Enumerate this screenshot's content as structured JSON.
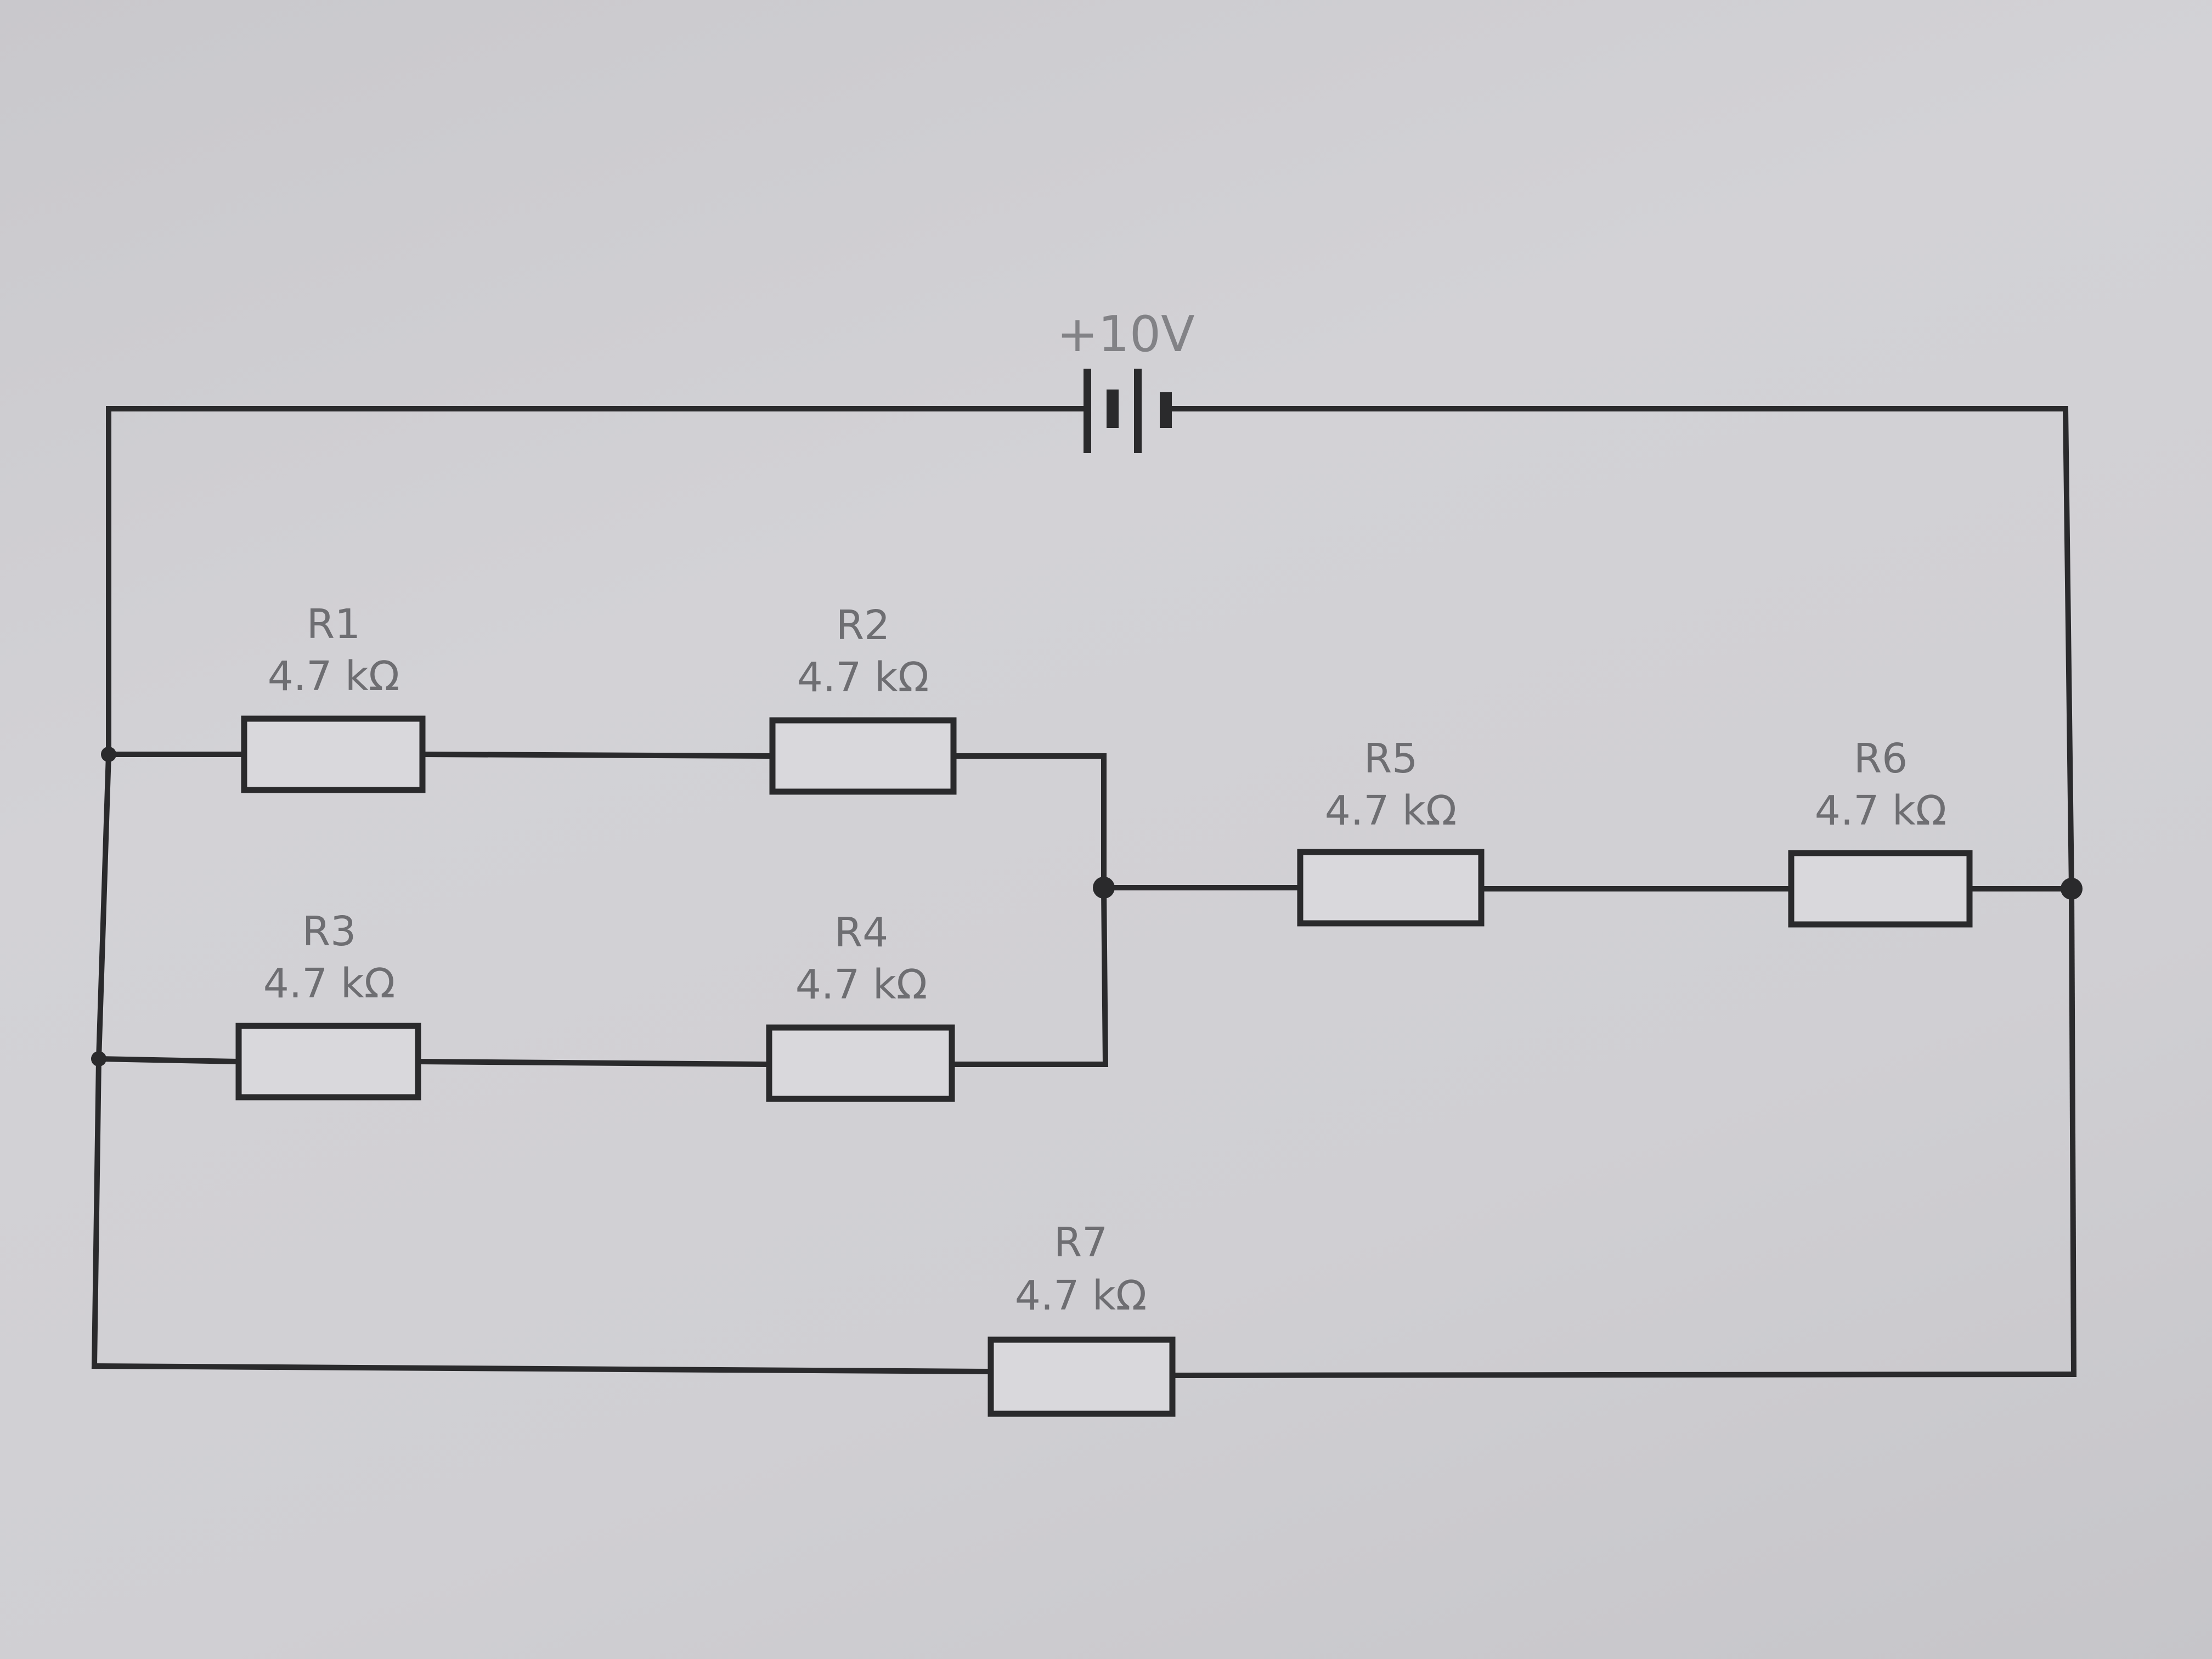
{
  "source": {
    "label": "+10V"
  },
  "resistors": [
    {
      "id": "r1",
      "name": "R1",
      "value": "4.7 kΩ"
    },
    {
      "id": "r2",
      "name": "R2",
      "value": "4.7 kΩ"
    },
    {
      "id": "r3",
      "name": "R3",
      "value": "4.7 kΩ"
    },
    {
      "id": "r4",
      "name": "R4",
      "value": "4.7 kΩ"
    },
    {
      "id": "r5",
      "name": "R5",
      "value": "4.7 kΩ"
    },
    {
      "id": "r6",
      "name": "R6",
      "value": "4.7 kΩ"
    },
    {
      "id": "r7",
      "name": "R7",
      "value": "4.7 kΩ"
    }
  ],
  "colors": {
    "wire": "#2a2a2c",
    "label": "#6e6e72",
    "paper": "#d0cfd3"
  }
}
